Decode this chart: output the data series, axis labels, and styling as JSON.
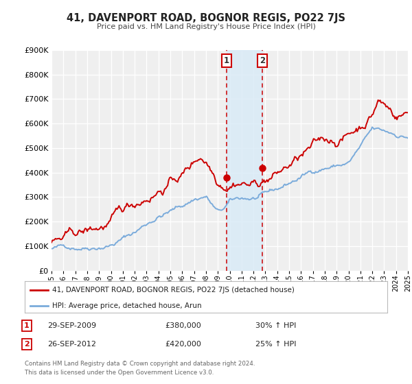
{
  "title": "41, DAVENPORT ROAD, BOGNOR REGIS, PO22 7JS",
  "subtitle": "Price paid vs. HM Land Registry's House Price Index (HPI)",
  "red_label": "41, DAVENPORT ROAD, BOGNOR REGIS, PO22 7JS (detached house)",
  "blue_label": "HPI: Average price, detached house, Arun",
  "annotation1_date": "29-SEP-2009",
  "annotation1_price": "£380,000",
  "annotation1_hpi": "30% ↑ HPI",
  "annotation2_date": "26-SEP-2012",
  "annotation2_price": "£420,000",
  "annotation2_hpi": "25% ↑ HPI",
  "sale1_year": 2009.75,
  "sale2_year": 2012.75,
  "sale1_val": 380000,
  "sale2_val": 420000,
  "footnote1": "Contains HM Land Registry data © Crown copyright and database right 2024.",
  "footnote2": "This data is licensed under the Open Government Licence v3.0.",
  "background_color": "#ffffff",
  "plot_bg_color": "#efefef",
  "grid_color": "#ffffff",
  "red_color": "#cc0000",
  "blue_color": "#7aabdb",
  "shade_color": "#d8eaf7",
  "ylim": [
    0,
    900000
  ],
  "xmin": 1995,
  "xmax": 2025
}
